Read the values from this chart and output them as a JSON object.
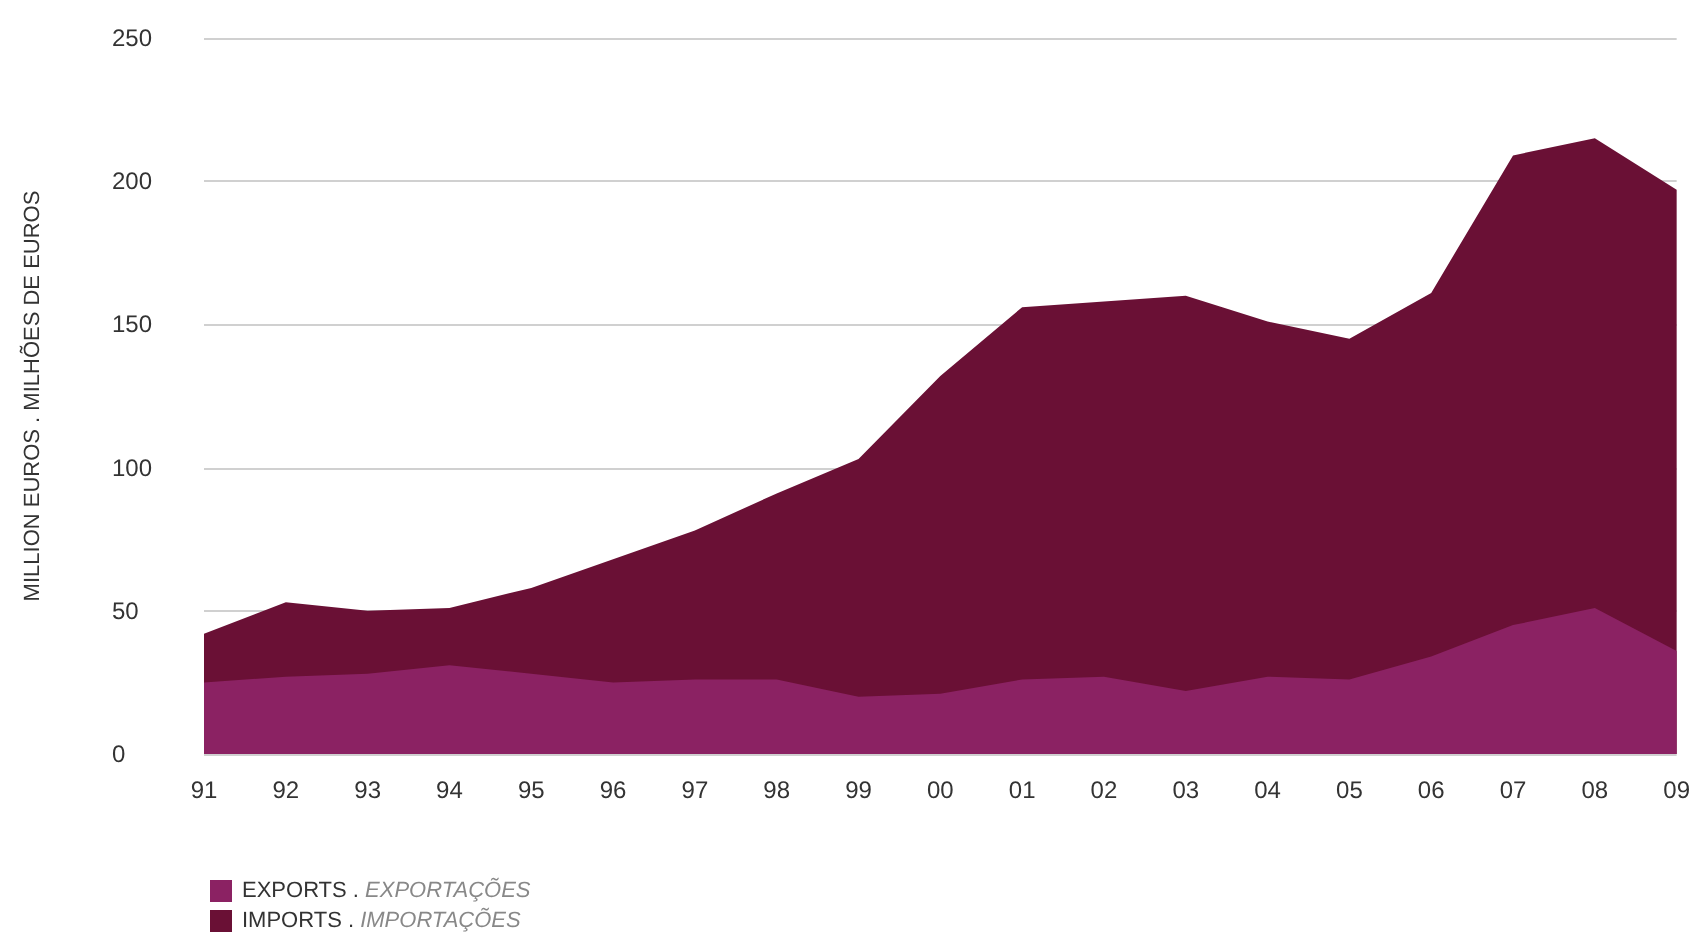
{
  "chart_data": {
    "type": "area",
    "ylabel": "MILLION EUROS . MILHÕES DE EUROS",
    "categories": [
      "91",
      "92",
      "93",
      "94",
      "95",
      "96",
      "97",
      "98",
      "99",
      "00",
      "01",
      "02",
      "03",
      "04",
      "05",
      "06",
      "07",
      "08",
      "09"
    ],
    "series": [
      {
        "name": "EXPORTS . EXPORTAÇÕES",
        "color": "#8b2263",
        "values": [
          25,
          27,
          28,
          31,
          28,
          25,
          26,
          26,
          20,
          21,
          26,
          27,
          22,
          27,
          26,
          34,
          45,
          51,
          36
        ]
      },
      {
        "name": "IMPORTS . IMPORTAÇÕES",
        "color": "#6a1035",
        "values": [
          42,
          53,
          50,
          51,
          58,
          68,
          78,
          91,
          103,
          132,
          156,
          158,
          160,
          151,
          145,
          161,
          209,
          215,
          197
        ]
      }
    ],
    "ylim": [
      0,
      250
    ],
    "yticks": [
      0,
      50,
      100,
      150,
      200,
      250
    ],
    "grid": "y",
    "legend": "bottom left"
  }
}
